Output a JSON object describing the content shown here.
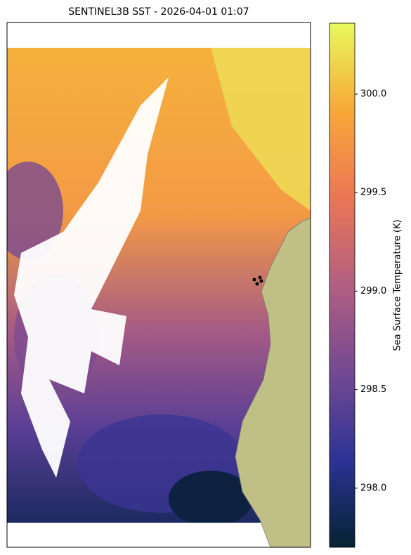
{
  "chart_data": {
    "type": "map",
    "title": "SENTINEL3B SST - 2026-04-01 01:07",
    "colorbar_label": "Sea Surface Temperature (K)",
    "clim": [
      297.7,
      300.36
    ],
    "cticks": [
      {
        "value": 298.0,
        "label": "298.0"
      },
      298.5,
      {
        "value": 299.0,
        "label": "299.0"
      },
      299.5,
      {
        "value": 300.0,
        "label": "300.0"
      }
    ],
    "colormap": [
      "#042333",
      "#2c3395",
      "#744992",
      "#b15f82",
      "#eb7655",
      "#f8a838",
      "#e8fa5b"
    ]
  }
}
